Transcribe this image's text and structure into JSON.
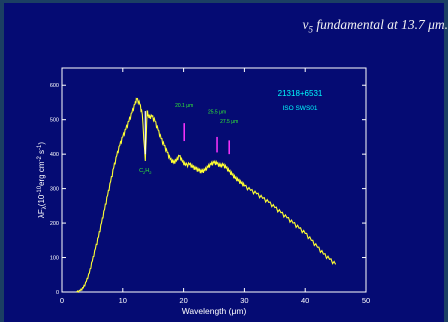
{
  "slide": {
    "headline_prefix": "v",
    "headline_subscript": "5",
    "headline_suffix": " fundamental at 13.7 μm."
  },
  "chart_data": {
    "type": "line",
    "title": "",
    "object_name": "21318+6531",
    "instrument": "ISO SWS01",
    "xlabel": "Wavelength (μm)",
    "ylabel_prefix": "λF",
    "ylabel_subscript": "λ",
    "ylabel_main": "(10",
    "ylabel_exp1": "-10",
    "ylabel_mid": "erg cm",
    "ylabel_exp2": "-2",
    "ylabel_mid2": " s",
    "ylabel_exp3": "-1",
    "ylabel_end": ")",
    "xlim": [
      0,
      50
    ],
    "ylim": [
      0,
      650
    ],
    "x_ticks": [
      0,
      10,
      20,
      30,
      40,
      50
    ],
    "y_ticks": [
      0,
      100,
      200,
      300,
      400,
      500,
      600
    ],
    "colors": {
      "spectrum": "#ffff33",
      "markers": "#ff33ff",
      "labels": "#33ee33",
      "text": "#00ffff",
      "axes": "#ffffff"
    },
    "spectrum": [
      [
        2.4,
        0
      ],
      [
        3.0,
        4
      ],
      [
        3.5,
        12
      ],
      [
        4.0,
        30
      ],
      [
        4.5,
        55
      ],
      [
        5.0,
        90
      ],
      [
        5.5,
        125
      ],
      [
        6.0,
        160
      ],
      [
        6.5,
        200
      ],
      [
        7.0,
        240
      ],
      [
        7.5,
        280
      ],
      [
        8.0,
        320
      ],
      [
        8.5,
        360
      ],
      [
        9.0,
        395
      ],
      [
        9.5,
        425
      ],
      [
        10.0,
        450
      ],
      [
        10.5,
        472
      ],
      [
        11.0,
        495
      ],
      [
        11.5,
        520
      ],
      [
        12.0,
        545
      ],
      [
        12.3,
        560
      ],
      [
        12.8,
        545
      ],
      [
        13.2,
        515
      ],
      [
        13.7,
        380
      ],
      [
        14.0,
        525
      ],
      [
        14.3,
        505
      ],
      [
        14.8,
        510
      ],
      [
        15.3,
        495
      ],
      [
        15.8,
        470
      ],
      [
        16.3,
        445
      ],
      [
        16.8,
        425
      ],
      [
        17.3,
        405
      ],
      [
        17.8,
        385
      ],
      [
        18.3,
        375
      ],
      [
        18.8,
        380
      ],
      [
        19.3,
        395
      ],
      [
        19.8,
        378
      ],
      [
        20.3,
        368
      ],
      [
        21.0,
        370
      ],
      [
        21.5,
        362
      ],
      [
        22.0,
        357
      ],
      [
        22.5,
        352
      ],
      [
        23.0,
        348
      ],
      [
        23.5,
        353
      ],
      [
        24.0,
        362
      ],
      [
        24.5,
        370
      ],
      [
        25.0,
        375
      ],
      [
        25.5,
        372
      ],
      [
        26.0,
        365
      ],
      [
        26.5,
        368
      ],
      [
        27.0,
        360
      ],
      [
        27.5,
        350
      ],
      [
        28.0,
        340
      ],
      [
        28.5,
        330
      ],
      [
        29.0,
        323
      ],
      [
        29.5,
        315
      ],
      [
        30.0,
        308
      ],
      [
        31.0,
        295
      ],
      [
        32.0,
        285
      ],
      [
        33.0,
        272
      ],
      [
        34.0,
        260
      ],
      [
        35.0,
        245
      ],
      [
        36.0,
        230
      ],
      [
        37.0,
        215
      ],
      [
        38.0,
        200
      ],
      [
        39.0,
        185
      ],
      [
        40.0,
        170
      ],
      [
        41.0,
        150
      ],
      [
        42.0,
        130
      ],
      [
        43.0,
        110
      ],
      [
        44.0,
        95
      ],
      [
        45.0,
        80
      ]
    ],
    "features": [
      {
        "x": 13.7,
        "label_main": "C",
        "label_sub1": "2",
        "label_mid": "H",
        "label_sub2": "2",
        "line_top": 525,
        "line_bottom": 400
      },
      {
        "label": "20.1 μm",
        "x": 20.1,
        "label_y": 537,
        "line_top": 490,
        "line_bottom": 438
      },
      {
        "label": "25.5 μm",
        "x": 25.5,
        "label_y": 518,
        "line_top": 450,
        "line_bottom": 405
      },
      {
        "label": "27.5 μm",
        "x": 27.5,
        "label_y": 490,
        "line_top": 440,
        "line_bottom": 400
      }
    ]
  }
}
